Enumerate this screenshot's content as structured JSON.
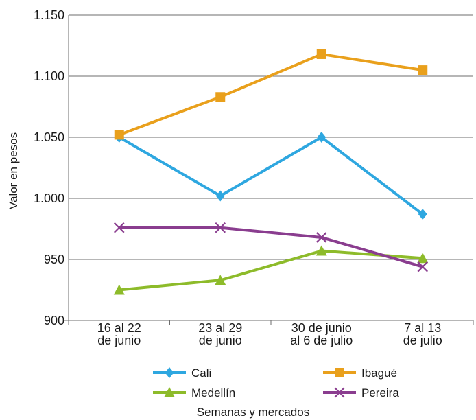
{
  "chart_data": {
    "type": "line",
    "title": "",
    "xlabel": "Semanas y mercados",
    "ylabel": "Valor en pesos",
    "categories": [
      [
        "16 al 22",
        "de junio"
      ],
      [
        "23 al 29",
        "de junio"
      ],
      [
        "30 de junio",
        "al 6 de julio"
      ],
      [
        "7 al 13",
        "de julio"
      ]
    ],
    "ylim": [
      900,
      1150
    ],
    "yticks": [
      900,
      950,
      1000,
      1050,
      1100,
      1150
    ],
    "ytick_labels": [
      "900",
      "950",
      "1.000",
      "1.050",
      "1.100",
      "1.150"
    ],
    "grid": "horizontal",
    "legend_position": "bottom",
    "series": [
      {
        "name": "Cali",
        "values": [
          1050,
          1002,
          1050,
          987
        ],
        "color": "#2ea7e0",
        "marker": "diamond"
      },
      {
        "name": "Ibagué",
        "values": [
          1052,
          1083,
          1118,
          1105
        ],
        "color": "#e9a01c",
        "marker": "square"
      },
      {
        "name": "Medellín",
        "values": [
          925,
          933,
          957,
          951
        ],
        "color": "#8dbb2a",
        "marker": "triangle"
      },
      {
        "name": "Pereira",
        "values": [
          976,
          976,
          968,
          944
        ],
        "color": "#8a3d8f",
        "marker": "x"
      }
    ]
  }
}
